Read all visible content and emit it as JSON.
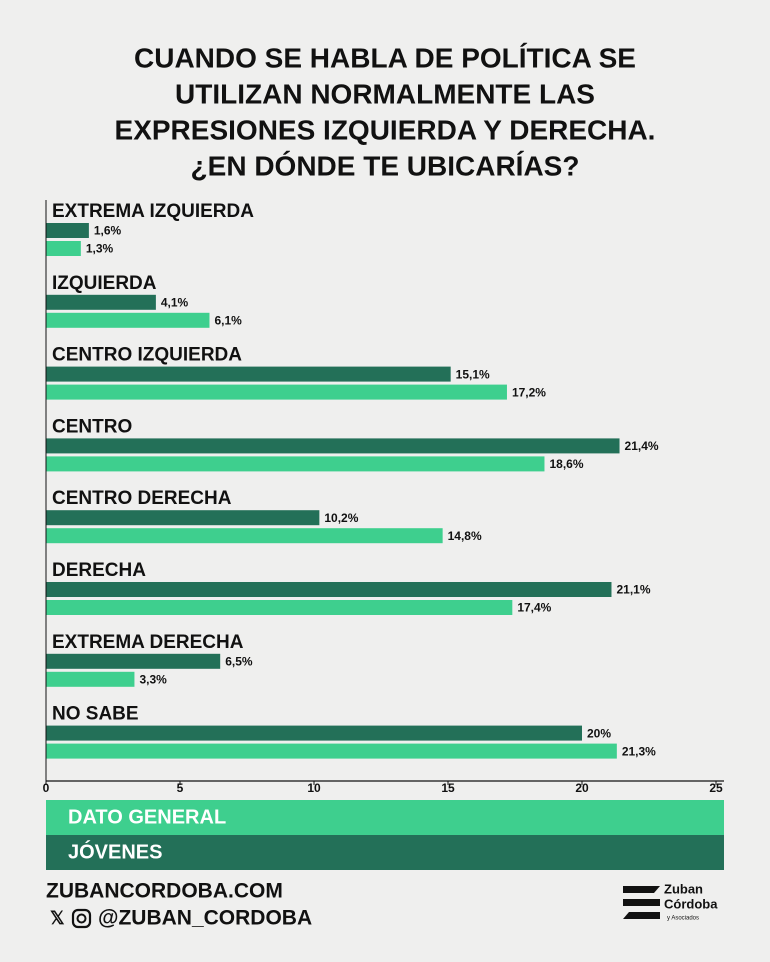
{
  "chart_data": {
    "type": "bar",
    "orientation": "horizontal",
    "title": [
      "CUANDO SE HABLA DE POLÍTICA SE",
      "UTILIZAN NORMALMENTE LAS",
      "EXPRESIONES IZQUIERDA Y DERECHA.",
      "¿EN DÓNDE TE UBICARÍAS?"
    ],
    "categories": [
      "EXTREMA IZQUIERDA",
      "IZQUIERDA",
      "CENTRO IZQUIERDA",
      "CENTRO",
      "CENTRO DERECHA",
      "DERECHA",
      "EXTREMA DERECHA",
      "NO SABE"
    ],
    "series": [
      {
        "name": "DATO GENERAL",
        "color": "#3ecf8e",
        "values": [
          1.3,
          6.1,
          17.2,
          18.6,
          14.8,
          17.4,
          3.3,
          21.3
        ],
        "value_labels": [
          "1,3%",
          "6,1%",
          "17,2%",
          "18,6%",
          "14,8%",
          "17,4%",
          "3,3%",
          "21,3%"
        ]
      },
      {
        "name": "JÓVENES",
        "color": "#237058",
        "values": [
          1.6,
          4.1,
          15.1,
          21.4,
          10.2,
          21.1,
          6.5,
          20
        ],
        "value_labels": [
          "1,6%",
          "4,1%",
          "15,1%",
          "21,4%",
          "10,2%",
          "21,1%",
          "6,5%",
          "20%"
        ]
      }
    ],
    "xlim": [
      0,
      25
    ],
    "xticks": [
      0,
      5,
      10,
      15,
      20,
      25
    ]
  },
  "footer": {
    "website": "ZUBANCORDOBA.COM",
    "handle": "@ZUBAN_CORDOBA",
    "logo": [
      "Zuban",
      "Córdoba",
      "y Asociados"
    ]
  }
}
